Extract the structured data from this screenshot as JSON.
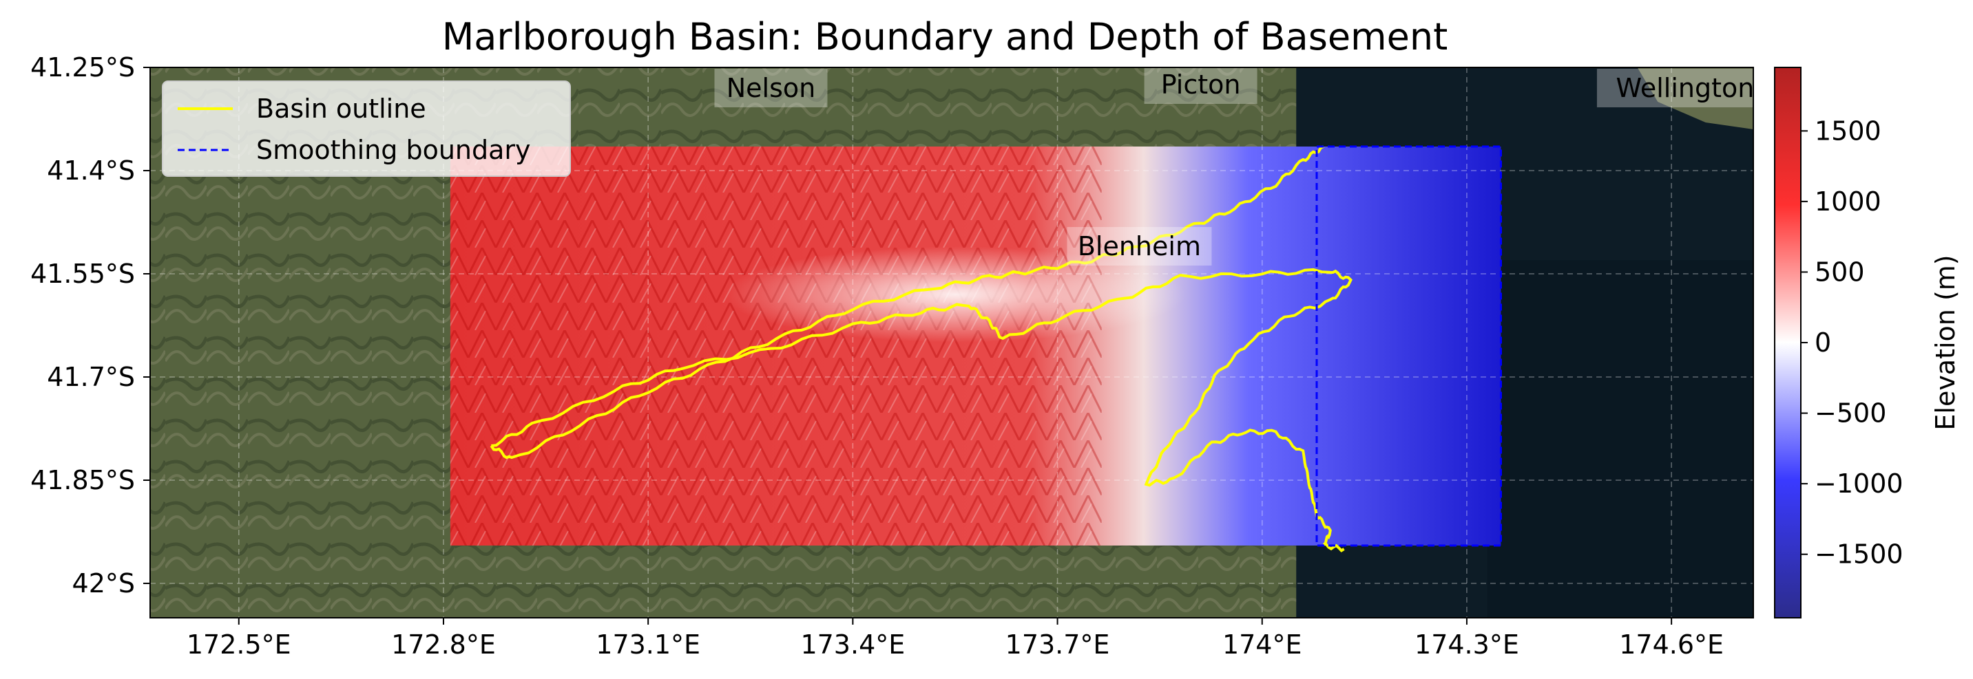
{
  "title": "Marlborough Basin: Boundary and Depth of Basement",
  "map": {
    "lon_range": [
      172.37,
      174.72
    ],
    "lat_range": [
      -42.05,
      -41.25
    ],
    "x_ticks": [
      {
        "value": 172.5,
        "label": "172.5°E"
      },
      {
        "value": 172.8,
        "label": "172.8°E"
      },
      {
        "value": 173.1,
        "label": "173.1°E"
      },
      {
        "value": 173.4,
        "label": "173.4°E"
      },
      {
        "value": 173.7,
        "label": "173.7°E"
      },
      {
        "value": 174.0,
        "label": "174°E"
      },
      {
        "value": 174.3,
        "label": "174.3°E"
      },
      {
        "value": 174.6,
        "label": "174.6°E"
      }
    ],
    "y_ticks": [
      {
        "value": -41.25,
        "label": "41.25°S"
      },
      {
        "value": -41.4,
        "label": "41.4°S"
      },
      {
        "value": -41.55,
        "label": "41.55°S"
      },
      {
        "value": -41.7,
        "label": "41.7°S"
      },
      {
        "value": -41.85,
        "label": "41.85°S"
      },
      {
        "value": -42.0,
        "label": "42°S"
      }
    ],
    "grid": true,
    "depth_extent": {
      "lon": [
        172.81,
        174.35
      ],
      "lat": [
        -41.365,
        -41.945
      ]
    },
    "smoothing_boundary": {
      "lon": [
        174.08,
        174.35
      ],
      "lat": [
        -41.365,
        -41.945
      ]
    },
    "cities": [
      {
        "name": "Nelson",
        "lon": 173.28,
        "lat": -41.28
      },
      {
        "name": "Picton",
        "lon": 173.91,
        "lat": -41.275
      },
      {
        "name": "Blenheim",
        "lon": 173.82,
        "lat": -41.51
      },
      {
        "name": "Wellington",
        "lon": 174.62,
        "lat": -41.28
      }
    ],
    "basin_outline": [
      [
        172.87,
        -41.8
      ],
      [
        172.93,
        -41.77
      ],
      [
        173.05,
        -41.72
      ],
      [
        173.15,
        -41.685
      ],
      [
        173.28,
        -41.66
      ],
      [
        173.4,
        -41.625
      ],
      [
        173.5,
        -41.605
      ],
      [
        173.57,
        -41.595
      ],
      [
        173.6,
        -41.62
      ],
      [
        173.62,
        -41.645
      ],
      [
        173.7,
        -41.615
      ],
      [
        173.8,
        -41.585
      ],
      [
        173.88,
        -41.555
      ],
      [
        174.0,
        -41.55
      ],
      [
        174.1,
        -41.545
      ],
      [
        174.13,
        -41.56
      ],
      [
        174.1,
        -41.59
      ],
      [
        174.04,
        -41.61
      ],
      [
        173.98,
        -41.65
      ],
      [
        173.93,
        -41.7
      ],
      [
        173.9,
        -41.755
      ],
      [
        173.86,
        -41.8
      ],
      [
        173.83,
        -41.855
      ],
      [
        173.87,
        -41.85
      ],
      [
        173.92,
        -41.8
      ],
      [
        173.97,
        -41.78
      ],
      [
        174.02,
        -41.78
      ],
      [
        174.06,
        -41.81
      ],
      [
        174.07,
        -41.86
      ],
      [
        174.08,
        -41.9
      ],
      [
        174.1,
        -41.925
      ],
      [
        174.09,
        -41.945
      ],
      [
        174.12,
        -41.95
      ]
    ],
    "basin_outline_north": [
      [
        172.87,
        -41.8
      ],
      [
        172.9,
        -41.82
      ],
      [
        173.0,
        -41.77
      ],
      [
        173.1,
        -41.72
      ],
      [
        173.2,
        -41.68
      ],
      [
        173.3,
        -41.64
      ],
      [
        173.4,
        -41.6
      ],
      [
        173.52,
        -41.57
      ],
      [
        173.6,
        -41.555
      ],
      [
        173.67,
        -41.545
      ],
      [
        173.75,
        -41.53
      ],
      [
        173.82,
        -41.51
      ],
      [
        173.9,
        -41.48
      ],
      [
        173.96,
        -41.455
      ],
      [
        174.02,
        -41.42
      ],
      [
        174.06,
        -41.385
      ],
      [
        174.09,
        -41.365
      ]
    ]
  },
  "legend": {
    "placement": "top-left",
    "items": [
      {
        "label": "Basin outline",
        "color": "#ffff00",
        "style": "solid"
      },
      {
        "label": "Smoothing boundary",
        "color": "#0000ff",
        "style": "dashed"
      }
    ]
  },
  "colorbar": {
    "label": "Elevation (m)",
    "range": [
      -1950,
      1950
    ],
    "ticks": [
      {
        "value": 1500,
        "label": "1500"
      },
      {
        "value": 1000,
        "label": "1000"
      },
      {
        "value": 500,
        "label": "500"
      },
      {
        "value": 0,
        "label": "0"
      },
      {
        "value": -500,
        "label": "−500"
      },
      {
        "value": -1000,
        "label": "−1000"
      },
      {
        "value": -1500,
        "label": "−1500"
      }
    ],
    "colors": {
      "low": "#2c2c8c",
      "mid": "#ffffff",
      "high": "#b22222"
    }
  },
  "colors": {
    "land": "#5d6a4a",
    "sea": "#0d1c26",
    "basin_outline": "#ffff00",
    "smoothing_boundary": "#0000ff"
  }
}
